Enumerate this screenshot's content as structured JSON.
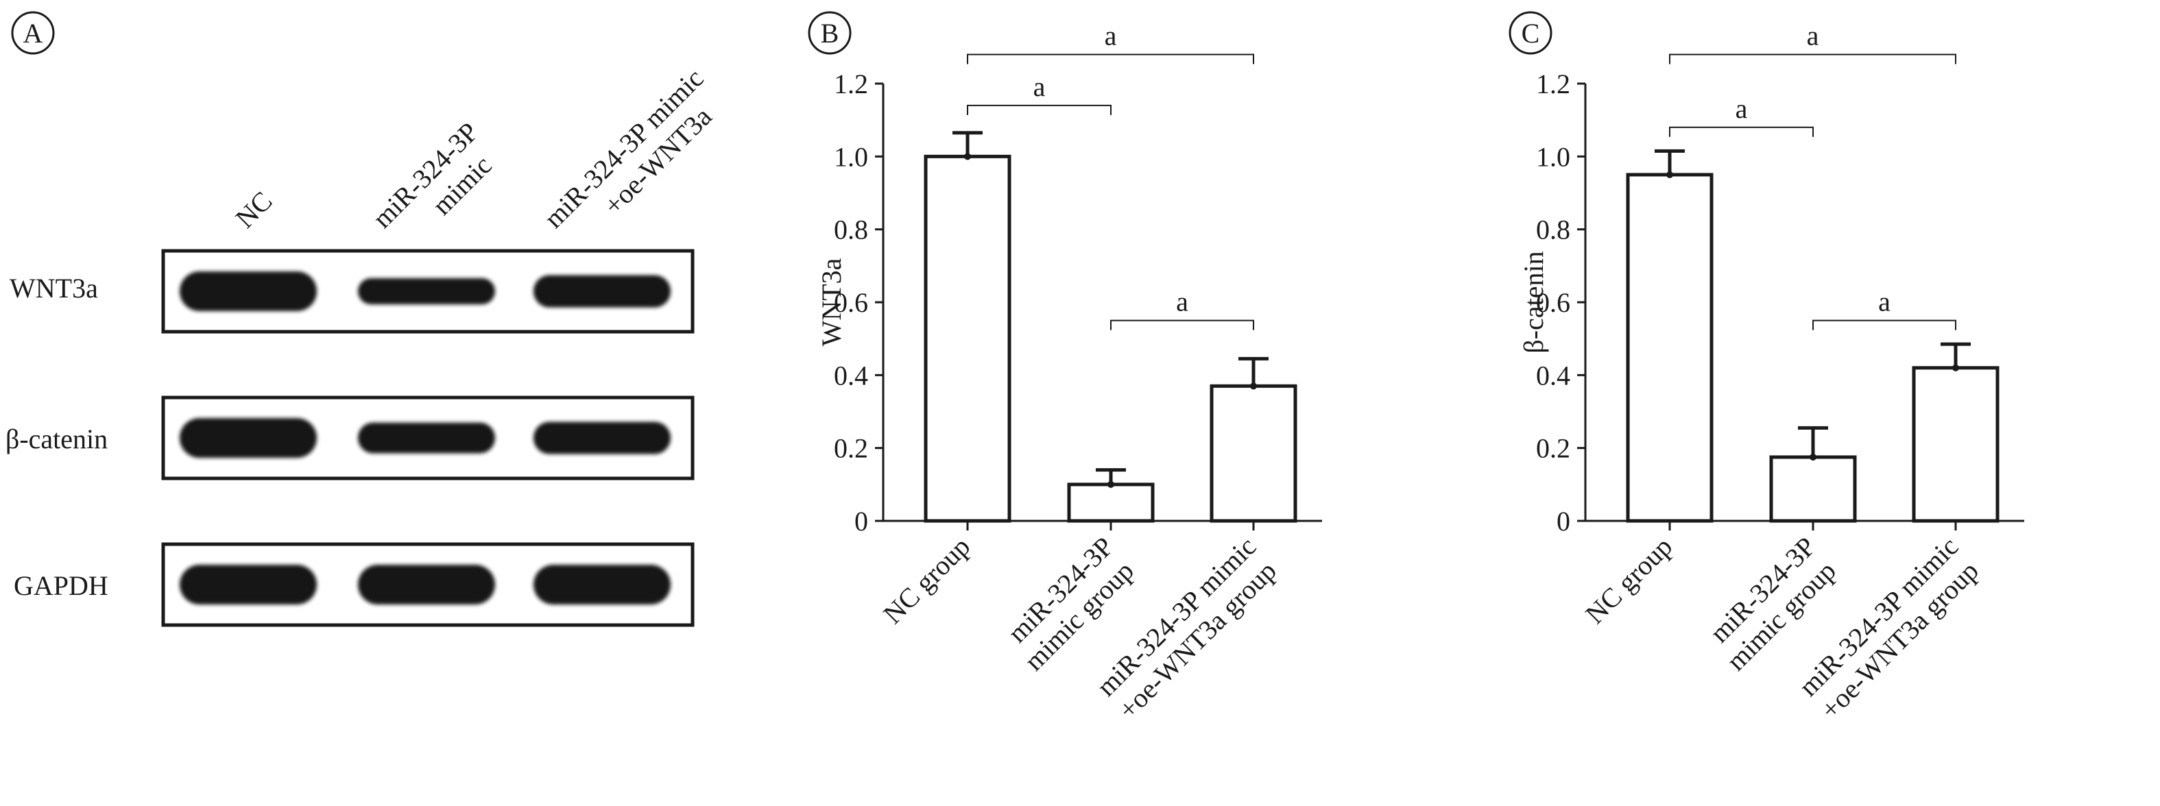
{
  "panels": {
    "A": {
      "letter": "A",
      "lane_labels": [
        [
          "NC"
        ],
        [
          "miR-324-3P",
          "mimic"
        ],
        [
          "miR-324-3P mimic",
          "+oe-WNT3a"
        ]
      ],
      "blot_labels": [
        "WNT3a",
        "β-catenin",
        "GAPDH"
      ],
      "band_intensity": [
        [
          1.0,
          0.55,
          0.75
        ],
        [
          1.0,
          0.7,
          0.75
        ],
        [
          1.0,
          1.0,
          1.0
        ]
      ]
    },
    "B": {
      "letter": "B"
    },
    "C": {
      "letter": "C"
    }
  },
  "chart_data": [
    {
      "type": "bar",
      "panel": "B",
      "ylabel": "WNT3a",
      "ylim": [
        0,
        1.2
      ],
      "yticks": [
        "0",
        "0.2",
        "0.4",
        "0.6",
        "0.8",
        "1.0",
        "1.2"
      ],
      "category_labels": [
        [
          "NC group"
        ],
        [
          "miR-324-3P",
          "mimic group"
        ],
        [
          "miR-324-3P mimic",
          "+oe-WNT3a group"
        ]
      ],
      "values": [
        1.0,
        0.1,
        0.37
      ],
      "errors": [
        0.065,
        0.04,
        0.075
      ],
      "significance": [
        {
          "from": 0,
          "to": 2,
          "label": "a",
          "y": 1.28
        },
        {
          "from": 0,
          "to": 1,
          "label": "a",
          "y": 1.14
        },
        {
          "from": 1,
          "to": 2,
          "label": "a",
          "y": 0.55
        }
      ]
    },
    {
      "type": "bar",
      "panel": "C",
      "ylabel": "β-catenin",
      "ylim": [
        0,
        1.2
      ],
      "yticks": [
        "0",
        "0.2",
        "0.4",
        "0.6",
        "0.8",
        "1.0",
        "1.2"
      ],
      "category_labels": [
        [
          "NC group"
        ],
        [
          "miR-324-3P",
          "mimic group"
        ],
        [
          "miR-324-3P mimic",
          "+oe-WNT3a group"
        ]
      ],
      "values": [
        0.95,
        0.175,
        0.42
      ],
      "errors": [
        0.065,
        0.08,
        0.065
      ],
      "significance": [
        {
          "from": 0,
          "to": 2,
          "label": "a",
          "y": 1.28
        },
        {
          "from": 0,
          "to": 1,
          "label": "a",
          "y": 1.08
        },
        {
          "from": 1,
          "to": 2,
          "label": "a",
          "y": 0.55
        }
      ]
    }
  ]
}
